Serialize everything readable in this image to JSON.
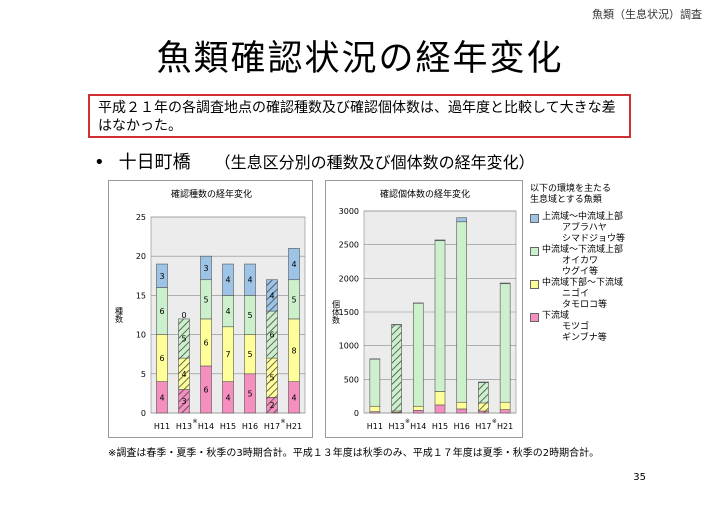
{
  "header": {
    "tag": "魚類（生息状況）調査",
    "title": "魚類確認状況の経年変化"
  },
  "summary": "平成２１年の各調査地点の確認種数及び確認個体数は、過年度と比較して大きな差はなかった。",
  "bullet": {
    "marker": "•",
    "site": "十日町橋",
    "subtitle": "（生息区分別の種数及び個体数の経年変化）"
  },
  "legend": {
    "title_lines": [
      "以下の環境を主たる",
      "生息域とする魚類"
    ],
    "items": [
      {
        "label": "上流域～中流域上部",
        "species": [
          "アブラハヤ",
          "シマドジョウ等"
        ],
        "color": "#9dc3e6"
      },
      {
        "label": "中流域～下流域上部",
        "species": [
          "オイカワ",
          "ウグイ等"
        ],
        "color": "#ccf0cc"
      },
      {
        "label": "中流域下部～下流域",
        "species": [
          "ニゴイ",
          "タモロコ等"
        ],
        "color": "#ffff99"
      },
      {
        "label": "下流域",
        "species": [
          "モツゴ",
          "ギンブナ等"
        ],
        "color": "#f58fc0"
      }
    ]
  },
  "colors": {
    "up": "#9dc3e6",
    "mid_up": "#ccf0cc",
    "mid_down": "#ffff99",
    "down": "#f58fc0",
    "plot_bg": "#ececec"
  },
  "chart_data": [
    {
      "type": "bar",
      "stacked": true,
      "title": "確認種数の経年変化",
      "ylabel": "種数",
      "categories": [
        "H11",
        "H13",
        "H14",
        "H15",
        "H16",
        "H17",
        "H21"
      ],
      "category_marks": [
        "",
        "※",
        "",
        "",
        "",
        "※",
        ""
      ],
      "ylim": [
        0,
        25
      ],
      "yticks": [
        0,
        5,
        10,
        15,
        20,
        25
      ],
      "hatched_categories": [
        "H13",
        "H17"
      ],
      "series": [
        {
          "name": "下流域",
          "values": [
            4,
            3,
            6,
            4,
            5,
            2,
            4
          ],
          "color": "#f58fc0"
        },
        {
          "name": "中流域下部～下流域",
          "values": [
            6,
            4,
            6,
            7,
            5,
            5,
            8
          ],
          "color": "#ffff99"
        },
        {
          "name": "中流域～下流域上部",
          "values": [
            6,
            5,
            5,
            4,
            5,
            6,
            5
          ],
          "color": "#ccf0cc"
        },
        {
          "name": "上流域～中流域上部",
          "values": [
            3,
            0,
            3,
            4,
            4,
            4,
            4
          ],
          "color": "#9dc3e6"
        }
      ]
    },
    {
      "type": "bar",
      "stacked": true,
      "title": "確認個体数の経年変化",
      "ylabel": "個体数",
      "categories": [
        "H11",
        "H13",
        "H14",
        "H15",
        "H16",
        "H17",
        "H21"
      ],
      "category_marks": [
        "",
        "※",
        "",
        "",
        "",
        "※",
        ""
      ],
      "ylim": [
        0,
        3000
      ],
      "yticks": [
        0,
        500,
        1000,
        1500,
        2000,
        2500,
        3000
      ],
      "hatched_categories": [
        "H13",
        "H17"
      ],
      "series": [
        {
          "name": "下流域",
          "values": [
            20,
            10,
            40,
            120,
            60,
            30,
            50
          ],
          "color": "#f58fc0"
        },
        {
          "name": "中流域下部～下流域",
          "values": [
            80,
            20,
            60,
            200,
            100,
            120,
            110
          ],
          "color": "#ffff99"
        },
        {
          "name": "中流域～下流域上部",
          "values": [
            700,
            1280,
            1530,
            2240,
            2680,
            300,
            1760
          ],
          "color": "#ccf0cc"
        },
        {
          "name": "上流域～中流域上部",
          "values": [
            5,
            5,
            5,
            10,
            60,
            10,
            10
          ],
          "color": "#9dc3e6"
        }
      ]
    }
  ],
  "footnote": "※調査は春季・夏季・秋季の3時期合計。平成１３年度は秋季のみ、平成１７年度は夏季・秋季の2時期合計。",
  "page_number": "35"
}
